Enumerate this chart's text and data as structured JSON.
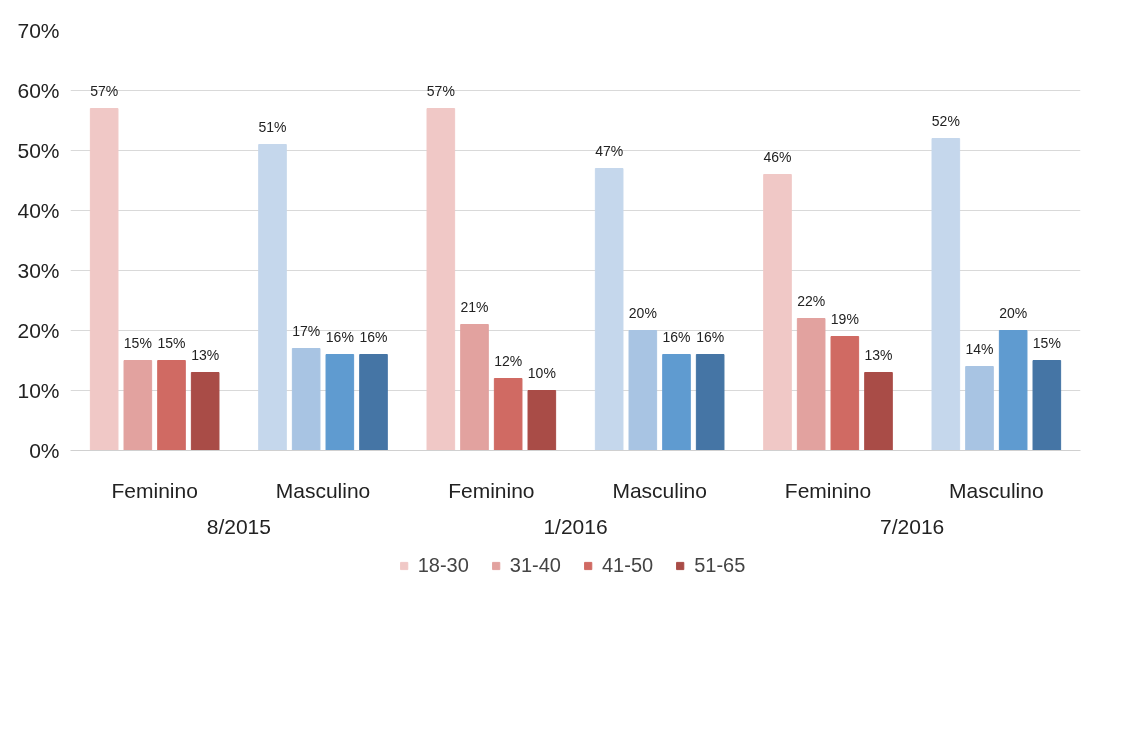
{
  "chart_data": {
    "type": "bar",
    "categories": [
      "Feminino",
      "Masculino",
      "Feminino",
      "Masculino",
      "Feminino",
      "Masculino"
    ],
    "series": [
      {
        "name": "18-30",
        "color": "#f0c8c6",
        "colors": [
          "#f0c8c6",
          "#c5d7ec",
          "#f0c8c6",
          "#c5d7ec",
          "#f0c8c6",
          "#c5d7ec"
        ],
        "values": [
          57,
          51,
          57,
          47,
          46,
          52
        ],
        "value_labels": [
          "57%",
          "51%",
          "57%",
          "47%",
          "46%",
          "52%"
        ]
      },
      {
        "name": "31-40",
        "color": "#e2a29f",
        "colors": [
          "#e2a29f",
          "#a8c4e3",
          "#e2a29f",
          "#a8c4e3",
          "#e2a29f",
          "#a8c4e3"
        ],
        "values": [
          15,
          17,
          21,
          20,
          22,
          14
        ],
        "value_labels": [
          "15%",
          "17%",
          "21%",
          "20%",
          "22%",
          "14%"
        ]
      },
      {
        "name": "41-50",
        "color": "#d06a63",
        "colors": [
          "#d06a63",
          "#5f9bd0",
          "#d06a63",
          "#5f9bd0",
          "#d06a63",
          "#5f9bd0"
        ],
        "values": [
          15,
          16,
          12,
          16,
          19,
          20
        ],
        "value_labels": [
          "15%",
          "16%",
          "12%",
          "16%",
          "19%",
          "20%"
        ]
      },
      {
        "name": "51-65",
        "color": "#a94c47",
        "colors": [
          "#a94c47",
          "#4575a5",
          "#a94c47",
          "#4575a5",
          "#a94c47",
          "#4575a5"
        ],
        "values": [
          13,
          16,
          10,
          16,
          13,
          15
        ],
        "value_labels": [
          "13%",
          "16%",
          "10%",
          "16%",
          "13%",
          "15%"
        ]
      }
    ],
    "annotations": [
      "8/2015",
      "1/2016",
      "7/2016"
    ],
    "ylim": [
      0,
      70
    ],
    "yticks": [
      {
        "value": 0,
        "label": "0%"
      },
      {
        "value": 10,
        "label": "10%"
      },
      {
        "value": 20,
        "label": "20%"
      },
      {
        "value": 30,
        "label": "30%"
      },
      {
        "value": 40,
        "label": "40%"
      },
      {
        "value": 50,
        "label": "50%"
      },
      {
        "value": 60,
        "label": "60%"
      },
      {
        "value": 70,
        "label": "70%"
      }
    ],
    "grid": "y",
    "legend": "bottom"
  }
}
